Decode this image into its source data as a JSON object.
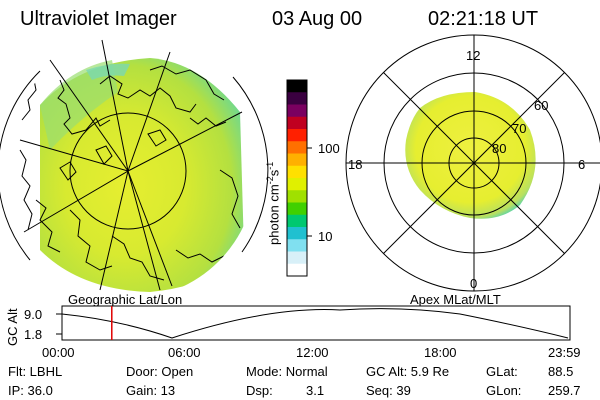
{
  "header": {
    "title": "Ultraviolet Imager",
    "date": "03 Aug 00",
    "time": "02:21:18 UT"
  },
  "geo_panel": {
    "caption": "Geographic Lat/Lon"
  },
  "colorbar": {
    "unit_label": "photon cm",
    "unit_exp1": "-2",
    "unit_mid": "s",
    "unit_exp2": "-1",
    "ticks": [
      "100",
      "10"
    ],
    "colors": [
      "#000000",
      "#3a0040",
      "#7a0060",
      "#c00020",
      "#ff2000",
      "#ff7000",
      "#ffb000",
      "#ffe000",
      "#e0f000",
      "#a0e000",
      "#40d000",
      "#00c870",
      "#20c0d0",
      "#80e0f0",
      "#d8f0f8",
      "#ffffff"
    ]
  },
  "apex_panel": {
    "caption": "Apex MLat/MLT",
    "mlt_labels": {
      "top": "12",
      "left": "18",
      "right": "6",
      "bottom": "0"
    },
    "lat_labels": [
      "60",
      "70",
      "80"
    ]
  },
  "timeline": {
    "axis_label": "GC Alt",
    "y_max": "9.0",
    "y_min": "1.8",
    "x_ticks": [
      "00:00",
      "06:00",
      "12:00",
      "18:00",
      "23:59"
    ],
    "current_time_fraction": 0.098
  },
  "info": {
    "row1": {
      "filter": "Flt: LBHL",
      "door": "Door: Open",
      "mode": "Mode: Normal",
      "gcalt": "GC Alt: 5.9 Re",
      "glat": "GLat:",
      "glat_val": "88.5"
    },
    "row2": {
      "ip": "IP: 36.0",
      "gain": "Gain: 13",
      "dsp": "Dsp:",
      "dsp_val": "3.1",
      "seq": "Seq: 39",
      "glon": "GLon:",
      "glon_val": "259.7"
    }
  }
}
